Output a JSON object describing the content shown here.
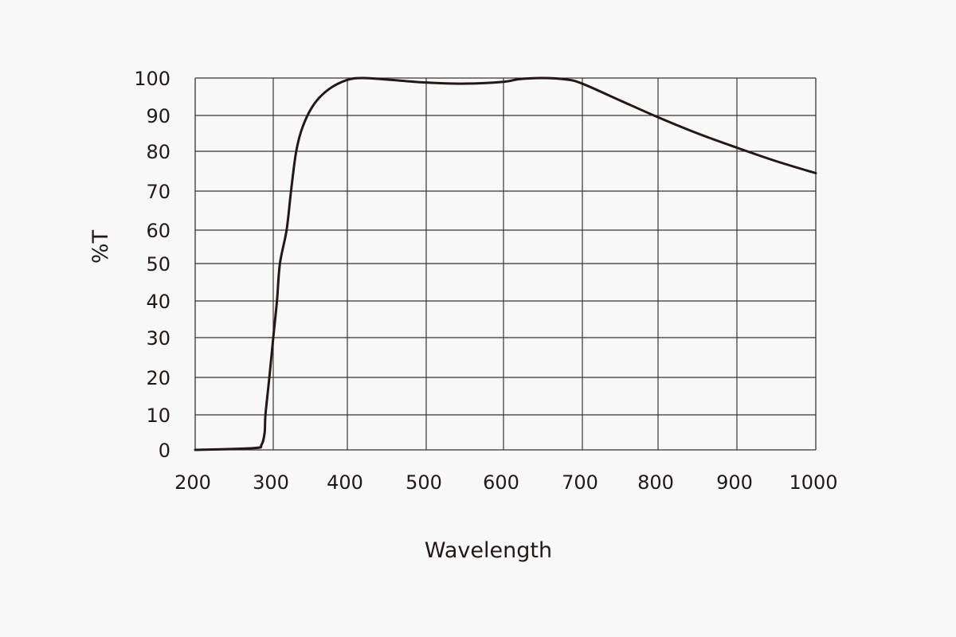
{
  "chart_data": {
    "type": "line",
    "title": "",
    "xlabel": "Wavelength",
    "ylabel": "%T",
    "xlim": [
      200,
      1000
    ],
    "ylim": [
      0,
      100
    ],
    "grid": true,
    "x_ticks": [
      "200",
      "300",
      "400",
      "500",
      "600",
      "700",
      "800",
      "900",
      "1000"
    ],
    "y_ticks": [
      "0",
      "10",
      "20",
      "30",
      "40",
      "50",
      "60",
      "70",
      "80",
      "90",
      "100"
    ],
    "line_color": "#231815",
    "series": [
      {
        "x": [
          200,
          275,
          285,
          289,
          290,
          295,
          300,
          305,
          309,
          318,
          324,
          331,
          340,
          355,
          375,
          400,
          420,
          450,
          500,
          550,
          600,
          620,
          650,
          680,
          700,
          750,
          800,
          850,
          900,
          950,
          1000
        ],
        "y": [
          0,
          0.5,
          1.5,
          5,
          10,
          20,
          30,
          40,
          50,
          60,
          70,
          80,
          87,
          93,
          97,
          99.5,
          100,
          99.6,
          98.8,
          98.5,
          99,
          99.7,
          100,
          99.6,
          98.5,
          94,
          89.5,
          85,
          81,
          77.5,
          74.5
        ]
      }
    ]
  }
}
